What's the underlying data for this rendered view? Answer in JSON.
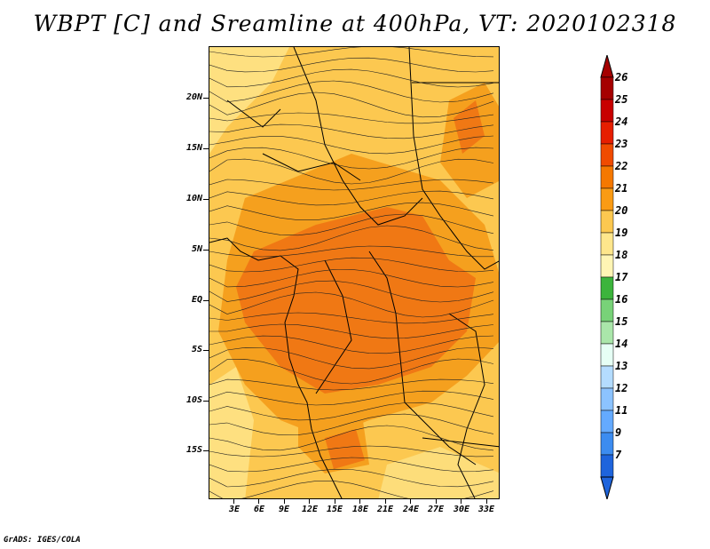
{
  "title": "WBPT [C] and Sreamline at 400hPa, VT: 2020102318",
  "credit": "GrADS: IGES/COLA",
  "lat_labels": [
    "20N",
    "15N",
    "10N",
    "5N",
    "EQ",
    "5S",
    "10S",
    "15S"
  ],
  "lon_labels": [
    "3E",
    "6E",
    "9E",
    "12E",
    "15E",
    "18E",
    "21E",
    "24E",
    "27E",
    "30E",
    "33E"
  ],
  "colorbar": {
    "labels": [
      "26",
      "25",
      "24",
      "23",
      "22",
      "21",
      "20",
      "19",
      "18",
      "17",
      "16",
      "15",
      "14",
      "13",
      "12",
      "11",
      "9",
      "7"
    ],
    "colors": [
      "#a50000",
      "#c80000",
      "#e61e00",
      "#f04b00",
      "#f57800",
      "#fa9b14",
      "#fcc850",
      "#fee68c",
      "#fff5b4",
      "#3cb43c",
      "#78d278",
      "#aae6aa",
      "#e6fff5",
      "#b4dcff",
      "#8cc3ff",
      "#64aaff",
      "#3c8cf0",
      "#1e64dc"
    ]
  },
  "shading": {
    "base_color": "#fcc850",
    "warm_color": "#f5a01e",
    "hot_color": "#f07814",
    "cool_color": "#fee68c"
  }
}
